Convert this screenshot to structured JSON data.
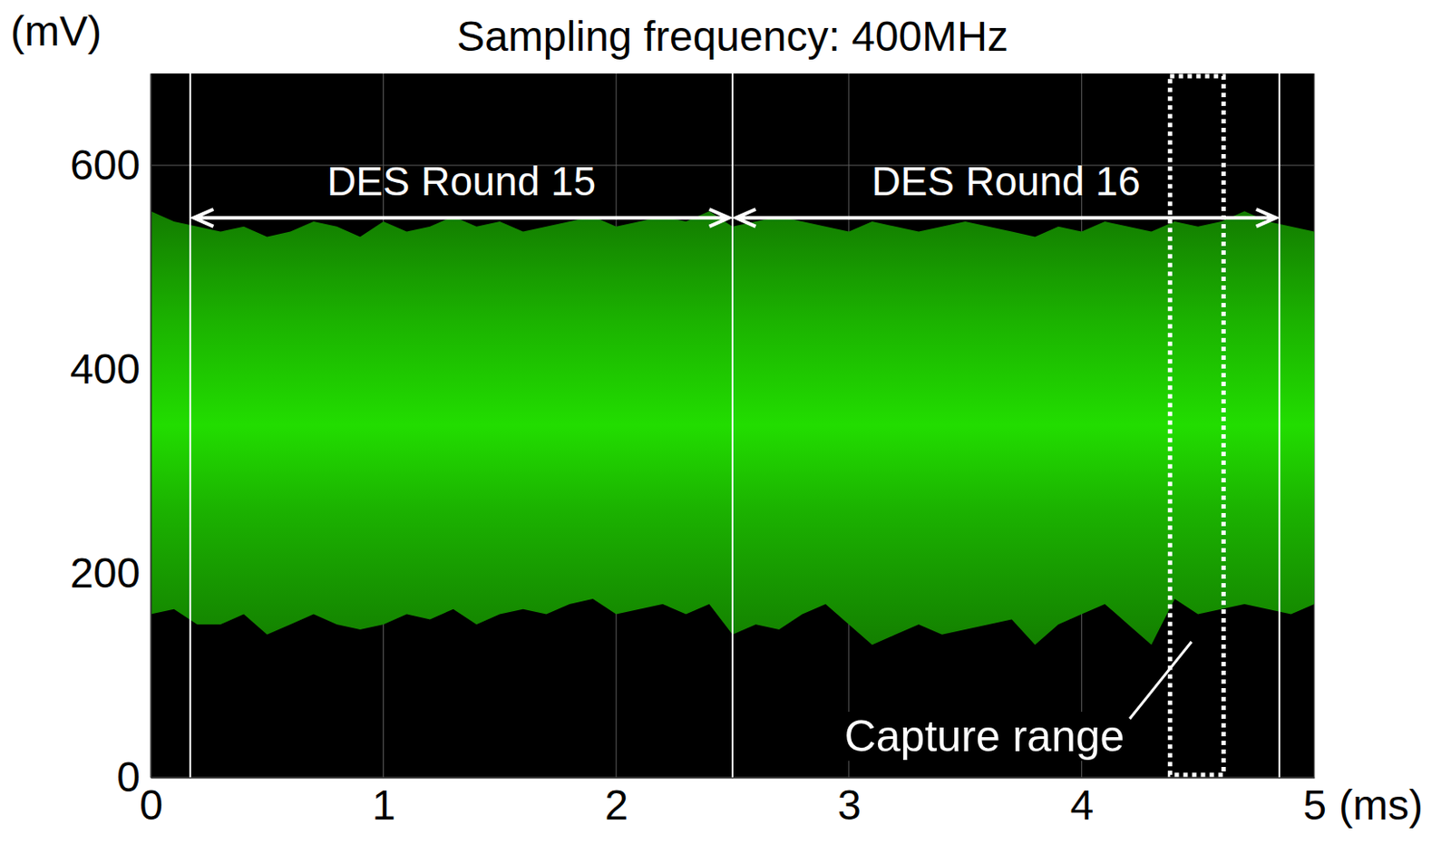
{
  "chart_data": {
    "type": "range_area",
    "title": "Sampling frequency: 400MHz",
    "y_label": "(mV)",
    "x_label": "(ms)",
    "color": "#22dd00",
    "grid": true,
    "xlim": [
      0,
      5
    ],
    "xticks": [
      0,
      1,
      2,
      3,
      4,
      5
    ],
    "ylim": [
      0,
      690
    ],
    "yticks": [
      0,
      200,
      400,
      600
    ],
    "x": [
      0,
      0.1,
      0.2,
      0.3,
      0.4,
      0.5,
      0.6,
      0.7,
      0.8,
      0.9,
      1.0,
      1.1,
      1.2,
      1.3,
      1.4,
      1.5,
      1.6,
      1.7,
      1.8,
      1.9,
      2.0,
      2.1,
      2.2,
      2.3,
      2.4,
      2.5,
      2.6,
      2.7,
      2.8,
      2.9,
      3.0,
      3.1,
      3.2,
      3.3,
      3.4,
      3.5,
      3.6,
      3.7,
      3.8,
      3.9,
      4.0,
      4.1,
      4.2,
      4.3,
      4.4,
      4.5,
      4.6,
      4.7,
      4.8,
      4.9,
      5.0
    ],
    "high": [
      555,
      545,
      540,
      535,
      540,
      530,
      535,
      545,
      540,
      530,
      545,
      535,
      540,
      550,
      540,
      545,
      535,
      540,
      545,
      550,
      540,
      545,
      550,
      545,
      555,
      540,
      545,
      550,
      545,
      540,
      535,
      545,
      540,
      535,
      540,
      545,
      540,
      535,
      530,
      540,
      535,
      545,
      540,
      535,
      545,
      540,
      545,
      555,
      545,
      540,
      535
    ],
    "low": [
      160,
      165,
      150,
      150,
      160,
      140,
      150,
      160,
      150,
      145,
      150,
      160,
      155,
      165,
      150,
      160,
      165,
      160,
      170,
      175,
      160,
      165,
      170,
      160,
      170,
      140,
      150,
      145,
      160,
      170,
      150,
      130,
      140,
      150,
      140,
      145,
      150,
      155,
      130,
      150,
      160,
      170,
      150,
      130,
      175,
      160,
      165,
      170,
      165,
      160,
      170
    ],
    "round_boundaries": [
      0.17,
      2.5,
      4.85
    ],
    "rounds": [
      {
        "label": "DES Round 15",
        "x0": 0.17,
        "x1": 2.5
      },
      {
        "label": "DES Round 16",
        "x0": 2.5,
        "x1": 4.85
      }
    ],
    "capture": {
      "label": "Capture range",
      "x0": 4.38,
      "x1": 4.61
    }
  }
}
